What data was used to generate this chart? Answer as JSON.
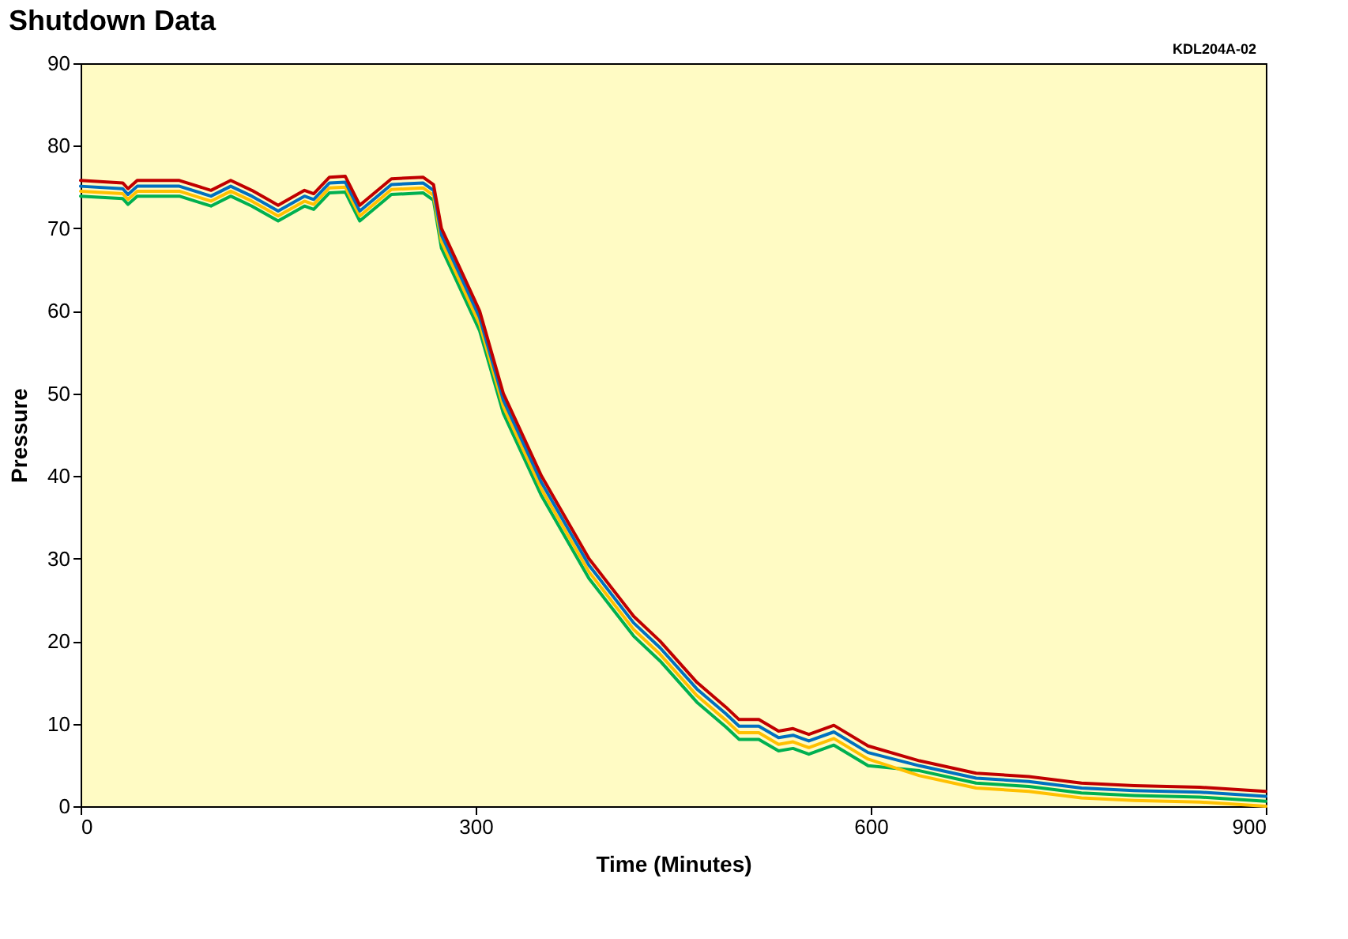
{
  "chart_data": {
    "type": "line",
    "title": "Shutdown Data",
    "xlabel": "Time (Minutes)",
    "ylabel": "Pressure",
    "annotations": [
      "KDL204A-02"
    ],
    "x": [
      0,
      32,
      36,
      43,
      75,
      99,
      114,
      130,
      150,
      170,
      177,
      189,
      201,
      212,
      236,
      260,
      268,
      274,
      290,
      303,
      321,
      350,
      386,
      420,
      440,
      468,
      490,
      500,
      515,
      530,
      541,
      553,
      572,
      598,
      637,
      680,
      720,
      760,
      800,
      850,
      900
    ],
    "series": [
      {
        "color": "#00b050",
        "values": [
          73.9,
          73.6,
          72.9,
          73.9,
          73.9,
          72.7,
          73.9,
          72.7,
          70.9,
          72.7,
          72.3,
          74.3,
          74.4,
          70.9,
          74.1,
          74.3,
          73.4,
          67.6,
          62.1,
          57.6,
          47.6,
          37.6,
          27.6,
          20.6,
          17.6,
          12.6,
          9.6,
          8.1,
          8.1,
          6.7,
          7.0,
          6.3,
          7.4,
          4.9,
          4.3,
          2.8,
          2.4,
          1.6,
          1.3,
          1.1,
          0.6
        ]
      },
      {
        "color": "#ffc000",
        "values": [
          74.5,
          74.2,
          73.5,
          74.5,
          74.5,
          73.3,
          74.5,
          73.3,
          71.5,
          73.3,
          72.9,
          74.9,
          75.0,
          71.5,
          74.7,
          74.9,
          74.0,
          68.4,
          62.9,
          58.4,
          48.4,
          38.4,
          28.4,
          21.4,
          18.4,
          13.4,
          10.4,
          8.9,
          8.9,
          7.5,
          7.8,
          7.1,
          8.2,
          5.7,
          3.7,
          2.2,
          1.8,
          1.0,
          0.7,
          0.5,
          0.0
        ]
      },
      {
        "color": "#0070c0",
        "values": [
          75.1,
          74.8,
          74.1,
          75.1,
          75.1,
          73.9,
          75.1,
          73.9,
          72.1,
          73.9,
          73.5,
          75.5,
          75.6,
          72.1,
          75.3,
          75.5,
          74.6,
          69.2,
          63.7,
          59.2,
          49.2,
          39.2,
          29.2,
          22.2,
          19.2,
          14.2,
          11.2,
          9.7,
          9.7,
          8.3,
          8.6,
          7.9,
          9.0,
          6.5,
          4.9,
          3.4,
          3.0,
          2.2,
          1.9,
          1.7,
          1.2
        ]
      },
      {
        "color": "#c00000",
        "values": [
          75.8,
          75.5,
          74.8,
          75.8,
          75.8,
          74.6,
          75.8,
          74.6,
          72.8,
          74.6,
          74.2,
          76.2,
          76.3,
          72.8,
          76.0,
          76.2,
          75.3,
          70,
          64.5,
          60,
          50,
          40,
          30,
          23,
          20,
          15,
          12,
          10.5,
          10.5,
          9.1,
          9.4,
          8.7,
          9.8,
          7.3,
          5.5,
          4.0,
          3.6,
          2.8,
          2.5,
          2.3,
          1.8
        ]
      }
    ],
    "xlim": [
      0,
      900
    ],
    "xticks": [
      0,
      300,
      600,
      900
    ],
    "ylim": [
      0,
      90
    ],
    "yticks": [
      0,
      10,
      20,
      30,
      40,
      50,
      60,
      70,
      80,
      90
    ],
    "grid": false,
    "legend": false
  }
}
